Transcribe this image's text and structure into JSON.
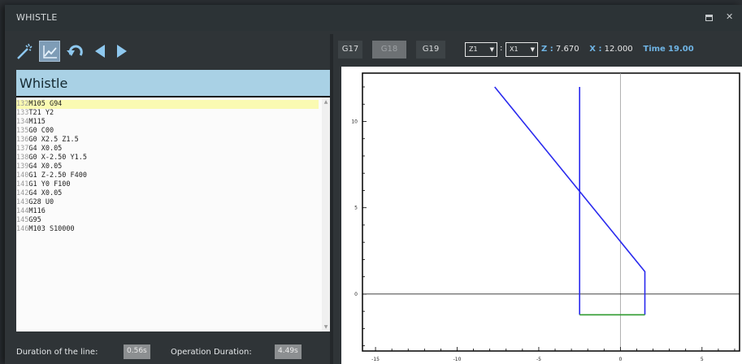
{
  "window": {
    "title": "WHISTLE"
  },
  "toolbar": {
    "icons": [
      "wand-icon",
      "trace-icon",
      "undo-icon",
      "arrow-left-icon",
      "arrow-right-icon"
    ]
  },
  "program": {
    "name": "Whistle",
    "lines": [
      {
        "n": "132",
        "code": "M105 G94"
      },
      {
        "n": "133",
        "code": "T21 Y2"
      },
      {
        "n": "134",
        "code": "M115"
      },
      {
        "n": "135",
        "code": "G0 C00"
      },
      {
        "n": "136",
        "code": "G0 X2.5 Z1.5"
      },
      {
        "n": "137",
        "code": "G4 X0.05"
      },
      {
        "n": "138",
        "code": "G0 X-2.50 Y1.5"
      },
      {
        "n": "139",
        "code": "G4 X0.05"
      },
      {
        "n": "140",
        "code": "G1 Z-2.50 F400"
      },
      {
        "n": "141",
        "code": "G1 Y0 F100"
      },
      {
        "n": "142",
        "code": "G4 X0.05"
      },
      {
        "n": "143",
        "code": "G28 U0"
      },
      {
        "n": "144",
        "code": "M116"
      },
      {
        "n": "145",
        "code": "G95"
      },
      {
        "n": "146",
        "code": "M103 S10000"
      }
    ]
  },
  "status": {
    "line_label": "Duration of the line:",
    "line_value": "0.56s",
    "op_label": "Operation Duration:",
    "op_value": "4.49s"
  },
  "plane_buttons": [
    "G17",
    "G18",
    "G19"
  ],
  "selected_plane": "G18",
  "axis_select": {
    "vertical": "Z1",
    "horizontal": "X1"
  },
  "readout": {
    "z_label": "Z :",
    "z_value": "7.670",
    "x_label": "X :",
    "x_value": "12.000",
    "time_label": "Time",
    "time_value": "19.00"
  },
  "colors": {
    "path_rapid": "#2a2aee",
    "path_feed": "#2e9a2e",
    "axis": "#000000",
    "cursor": "#9a9a9a"
  },
  "chart_data": {
    "type": "line",
    "xlim": [
      -15.8,
      7.3
    ],
    "ylim": [
      -3.3,
      12.8
    ],
    "x_ticks": [
      "-15",
      "-10",
      "-5",
      "0",
      "5"
    ],
    "y_ticks": [
      "10",
      "5",
      "0"
    ],
    "tick_values_x": [
      -15,
      -10,
      -5,
      0,
      5
    ],
    "tick_values_y": [
      10,
      5,
      0
    ],
    "cursor": {
      "x": 0,
      "y": 0
    },
    "series": [
      {
        "color": "#2a2aee",
        "points": [
          [
            -7.7,
            12.0
          ],
          [
            1.5,
            1.3
          ],
          [
            1.5,
            -1.2
          ]
        ]
      },
      {
        "color": "#2a2aee",
        "points": [
          [
            -2.5,
            12.0
          ],
          [
            -2.5,
            -1.2
          ]
        ]
      },
      {
        "color": "#2e9a2e",
        "points": [
          [
            -2.5,
            -1.2
          ],
          [
            1.5,
            -1.2
          ]
        ]
      }
    ]
  }
}
